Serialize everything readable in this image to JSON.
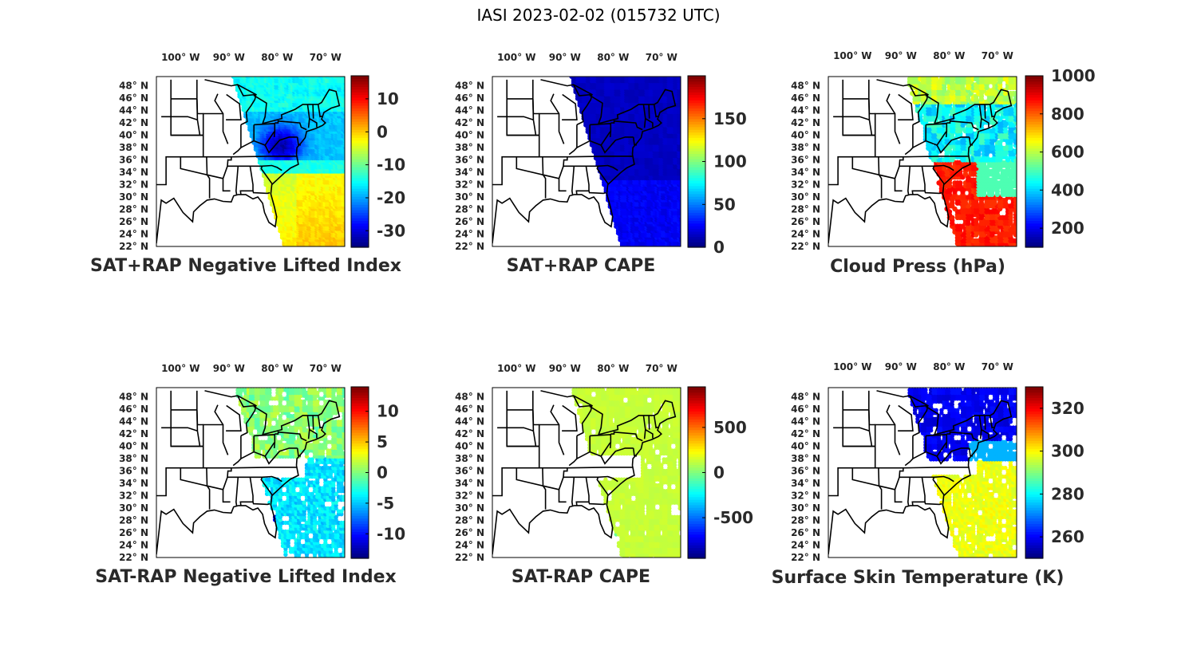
{
  "figure_title": "IASI 2023-02-02 (015732 UTC)",
  "colormap": "jet",
  "lon_tick_labels": [
    "100° W",
    "90° W",
    "80° W",
    "70° W"
  ],
  "lat_tick_labels": [
    "48° N",
    "46° N",
    "44° N",
    "42° N",
    "40° N",
    "38° N",
    "36° N",
    "34° N",
    "32° N",
    "30° N",
    "28° N",
    "26° N",
    "24° N",
    "22° N"
  ],
  "panels": [
    {
      "id": "p1",
      "label": "SAT+RAP Negative Lifted Index",
      "colorbar_ticks": [
        "10",
        "0",
        "-10",
        "-20",
        "-30"
      ],
      "colorbar_range": [
        -35,
        17
      ],
      "field": "nli_sum"
    },
    {
      "id": "p2",
      "label": "SAT+RAP CAPE",
      "colorbar_ticks": [
        "150",
        "100",
        "50",
        "0"
      ],
      "colorbar_range": [
        0,
        200
      ],
      "field": "cape_sum"
    },
    {
      "id": "p3",
      "label": "Cloud Press (hPa)",
      "colorbar_ticks": [
        "1000",
        "800",
        "600",
        "400",
        "200"
      ],
      "colorbar_range": [
        100,
        1000
      ],
      "field": "cloud_press"
    },
    {
      "id": "p4",
      "label": "SAT-RAP Negative Lifted Index",
      "colorbar_ticks": [
        "10",
        "5",
        "0",
        "-5",
        "-10"
      ],
      "colorbar_range": [
        -14,
        14
      ],
      "field": "nli_diff"
    },
    {
      "id": "p5",
      "label": "SAT-RAP CAPE",
      "colorbar_ticks": [
        "500",
        "0",
        "-500"
      ],
      "colorbar_range": [
        -950,
        950
      ],
      "field": "cape_diff"
    },
    {
      "id": "p6",
      "label": "Surface Skin Temperature (K)",
      "colorbar_ticks": [
        "320",
        "300",
        "280",
        "260"
      ],
      "colorbar_range": [
        250,
        330
      ],
      "field": "skin_temp"
    }
  ]
}
